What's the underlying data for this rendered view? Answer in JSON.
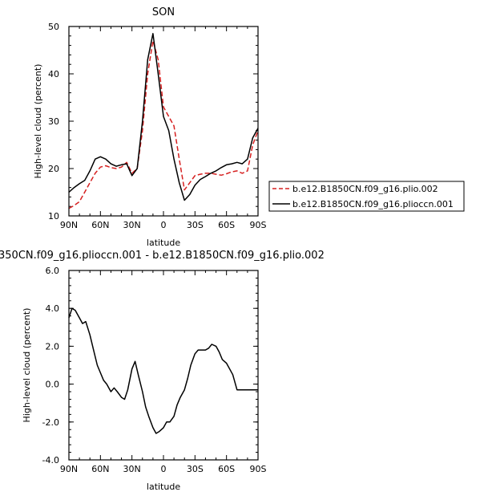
{
  "chart_data": [
    {
      "type": "line",
      "title": "SON",
      "xlabel": "latitude",
      "ylabel": "High-level cloud (percent)",
      "xlim": [
        90,
        -90
      ],
      "ylim": [
        10,
        50
      ],
      "xticks": [
        90,
        60,
        30,
        0,
        -30,
        -60,
        -90
      ],
      "xtick_labels": [
        "90N",
        "60N",
        "30N",
        "0",
        "30S",
        "60S",
        "90S"
      ],
      "yticks": [
        10,
        20,
        30,
        40,
        50
      ],
      "ytick_labels": [
        "10",
        "20",
        "30",
        "40",
        "50"
      ],
      "legend_placement": "right",
      "series": [
        {
          "name": "b.e12.B1850CN.f09_g16.plio.002",
          "color": "#d62020",
          "style": "dashed",
          "x": [
            90,
            85,
            80,
            75,
            70,
            65,
            60,
            55,
            50,
            45,
            40,
            35,
            30,
            25,
            20,
            15,
            10,
            5,
            0,
            -5,
            -10,
            -15,
            -20,
            -25,
            -30,
            -35,
            -40,
            -45,
            -50,
            -55,
            -60,
            -65,
            -70,
            -75,
            -80,
            -85,
            -90
          ],
          "y": [
            11.6,
            12.2,
            13.0,
            15.0,
            17.0,
            19.0,
            20.3,
            20.6,
            20.2,
            20.0,
            20.3,
            21.3,
            19.0,
            20.0,
            28.0,
            40.0,
            47.0,
            43.0,
            33.0,
            31.0,
            29.0,
            22.0,
            15.5,
            17.0,
            18.5,
            18.8,
            19.0,
            19.0,
            18.8,
            18.6,
            18.9,
            19.3,
            19.5,
            19.0,
            19.5,
            25.0,
            28.0
          ]
        },
        {
          "name": "b.e12.B1850CN.f09_g16.plioccn.001",
          "color": "#000000",
          "style": "solid",
          "x": [
            90,
            85,
            80,
            75,
            70,
            65,
            60,
            55,
            50,
            45,
            40,
            35,
            30,
            25,
            20,
            15,
            10,
            5,
            0,
            -5,
            -10,
            -15,
            -20,
            -25,
            -30,
            -35,
            -40,
            -45,
            -50,
            -55,
            -60,
            -65,
            -70,
            -75,
            -80,
            -85,
            -90
          ],
          "y": [
            15.0,
            16.0,
            16.8,
            17.5,
            19.5,
            22.0,
            22.5,
            22.0,
            21.0,
            20.5,
            20.8,
            21.0,
            18.5,
            20.0,
            30.0,
            43.0,
            48.5,
            40.0,
            31.0,
            28.0,
            22.0,
            17.0,
            13.3,
            14.5,
            16.5,
            17.7,
            18.3,
            19.0,
            19.5,
            20.2,
            20.8,
            21.0,
            21.3,
            21.0,
            22.0,
            26.5,
            28.5
          ]
        }
      ]
    },
    {
      "type": "line",
      "title": "350CN.f09_g16.plioccn.001 - b.e12.B1850CN.f09_g16.plio.002",
      "xlabel": "latitude",
      "ylabel": "High-level cloud (percent)",
      "xlim": [
        90,
        -90
      ],
      "ylim": [
        -4,
        6
      ],
      "xticks": [
        90,
        60,
        30,
        0,
        -30,
        -60,
        -90
      ],
      "xtick_labels": [
        "90N",
        "60N",
        "30N",
        "0",
        "30S",
        "60S",
        "90S"
      ],
      "yticks": [
        -4,
        -2,
        0,
        2,
        4,
        6
      ],
      "ytick_labels": [
        "-4.0",
        "-2.0",
        "0.0",
        "2.0",
        "4.0",
        "6.0"
      ],
      "series": [
        {
          "color": "#000000",
          "style": "solid",
          "x": [
            90,
            87,
            84,
            80,
            77,
            74,
            70,
            67,
            63,
            60,
            57,
            54,
            50,
            47,
            44,
            40,
            37,
            34,
            30,
            27,
            24,
            20,
            17,
            14,
            10,
            7,
            4,
            0,
            -3,
            -6,
            -10,
            -13,
            -16,
            -20,
            -23,
            -26,
            -30,
            -33,
            -36,
            -40,
            -43,
            -46,
            -50,
            -53,
            -56,
            -60,
            -63,
            -66,
            -70,
            -73,
            -76,
            -80,
            -83,
            -86,
            -90
          ],
          "y": [
            3.5,
            4.0,
            3.9,
            3.5,
            3.2,
            3.3,
            2.6,
            1.9,
            1.0,
            0.6,
            0.2,
            0.0,
            -0.4,
            -0.2,
            -0.4,
            -0.7,
            -0.8,
            -0.3,
            0.8,
            1.2,
            0.5,
            -0.4,
            -1.2,
            -1.7,
            -2.3,
            -2.6,
            -2.5,
            -2.3,
            -2.0,
            -2.0,
            -1.7,
            -1.1,
            -0.7,
            -0.3,
            0.3,
            1.0,
            1.6,
            1.8,
            1.8,
            1.8,
            1.9,
            2.1,
            2.0,
            1.7,
            1.3,
            1.1,
            0.8,
            0.5,
            -0.3,
            -0.3,
            -0.3,
            -0.3,
            -0.3,
            -0.3,
            -0.3
          ]
        }
      ]
    }
  ]
}
